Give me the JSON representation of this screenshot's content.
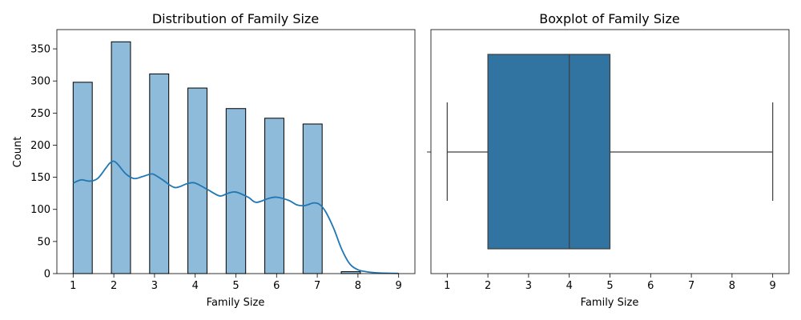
{
  "chart_data": [
    {
      "type": "bar",
      "title": "Distribution of Family Size",
      "xlabel": "Family Size",
      "ylabel": "Count",
      "xlim": [
        0.6,
        9.4
      ],
      "ylim": [
        0,
        380
      ],
      "xticks": [
        1,
        2,
        3,
        4,
        5,
        6,
        7,
        8,
        9
      ],
      "yticks": [
        0,
        50,
        100,
        150,
        200,
        250,
        300,
        350
      ],
      "bars": [
        {
          "x0": 1.0,
          "x1": 1.47,
          "count": 298
        },
        {
          "x0": 1.94,
          "x1": 2.41,
          "count": 361
        },
        {
          "x0": 2.88,
          "x1": 3.35,
          "count": 311
        },
        {
          "x0": 3.82,
          "x1": 4.29,
          "count": 289
        },
        {
          "x0": 4.76,
          "x1": 5.24,
          "count": 257
        },
        {
          "x0": 5.71,
          "x1": 6.18,
          "count": 242
        },
        {
          "x0": 6.65,
          "x1": 7.12,
          "count": 233
        },
        {
          "x0": 7.59,
          "x1": 8.06,
          "count": 3
        }
      ],
      "kde": {
        "x": [
          1.0,
          1.2,
          1.4,
          1.6,
          1.8,
          1.9,
          2.0,
          2.1,
          2.3,
          2.5,
          2.7,
          2.9,
          3.0,
          3.2,
          3.5,
          3.8,
          4.0,
          4.3,
          4.6,
          4.8,
          5.0,
          5.3,
          5.5,
          5.8,
          6.0,
          6.3,
          6.5,
          6.7,
          6.9,
          7.05,
          7.2,
          7.4,
          7.6,
          7.8,
          8.0,
          8.2,
          8.5,
          8.8,
          9.0
        ],
        "y": [
          141,
          146,
          144,
          148,
          164,
          172,
          175,
          170,
          155,
          148,
          151,
          155,
          154,
          146,
          134,
          140,
          141,
          131,
          121,
          125,
          127,
          119,
          111,
          117,
          119,
          114,
          107,
          106,
          110,
          108,
          97,
          71,
          38,
          15,
          6,
          3,
          1,
          0.5,
          0.3
        ]
      },
      "colors": {
        "bar_fill": "#8fbbda",
        "bar_edge": "#000000",
        "kde_line": "#1f77b4"
      }
    },
    {
      "type": "boxplot",
      "title": "Boxplot of Family Size",
      "xlabel": "Family Size",
      "xlim": [
        0.6,
        9.4
      ],
      "xticks": [
        1,
        2,
        3,
        4,
        5,
        6,
        7,
        8,
        9
      ],
      "stats": {
        "whisker_low": 1,
        "q1": 2,
        "median": 4,
        "q3": 5,
        "whisker_high": 9
      },
      "colors": {
        "box_fill": "#3274a1",
        "line": "#3d3d3d"
      }
    }
  ]
}
